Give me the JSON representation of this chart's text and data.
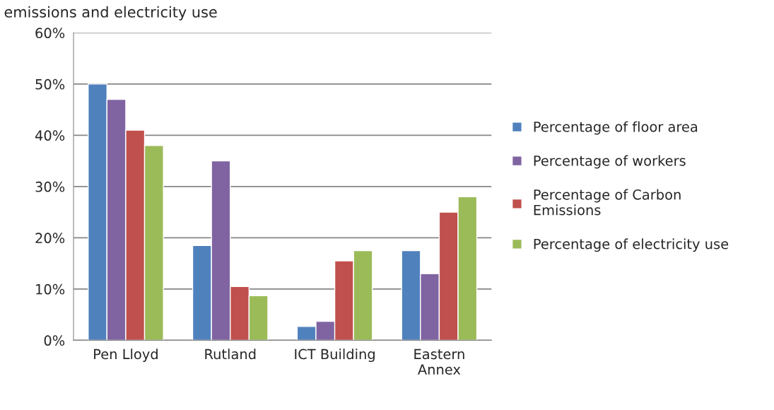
{
  "chart_data": {
    "type": "bar",
    "title": "emissions and electricity use",
    "categories": [
      "Pen Lloyd",
      "Rutland",
      "ICT Building",
      "Eastern\nAnnex"
    ],
    "series": [
      {
        "name": "Percentage of floor area",
        "color": "#4f81bd",
        "values": [
          50,
          18.5,
          2.7,
          17.5
        ]
      },
      {
        "name": "Percentage of workers",
        "color": "#8064a2",
        "values": [
          47,
          35,
          3.7,
          13
        ]
      },
      {
        "name": "Percentage of Carbon\nEmissions",
        "color": "#c0504d",
        "values": [
          41,
          10.5,
          15.5,
          25
        ]
      },
      {
        "name": "Percentage of electricity use",
        "color": "#9bbb59",
        "values": [
          38,
          8.7,
          17.5,
          28
        ]
      }
    ],
    "ylim": [
      0,
      60
    ],
    "yticks": [
      {
        "value": 0,
        "label": "0%"
      },
      {
        "value": 10,
        "label": "10%"
      },
      {
        "value": 20,
        "label": "20%"
      },
      {
        "value": 30,
        "label": "30%"
      },
      {
        "value": 40,
        "label": "40%"
      },
      {
        "value": 50,
        "label": "50%"
      },
      {
        "value": 60,
        "label": "60%"
      }
    ],
    "grid": "y",
    "legend": "right"
  }
}
